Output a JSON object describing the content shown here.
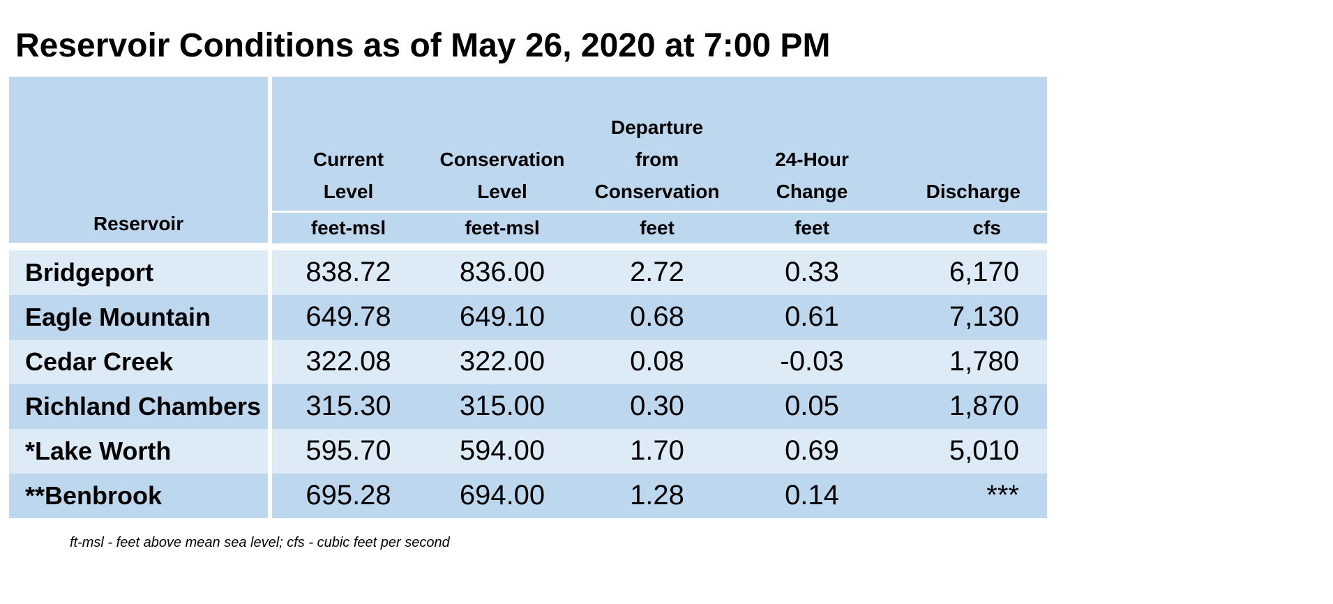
{
  "title": "Reservoir Conditions as of May 26, 2020 at 7:00 PM",
  "columns": [
    {
      "header": "Reservoir",
      "unit": ""
    },
    {
      "header": "Current Level",
      "unit": "feet-msl"
    },
    {
      "header": "Conservation Level",
      "unit": "feet-msl"
    },
    {
      "header": "Departure from Conservation",
      "unit": "feet"
    },
    {
      "header": "24-Hour Change",
      "unit": "feet"
    },
    {
      "header": "Discharge",
      "unit": "cfs"
    }
  ],
  "rows": [
    {
      "reservoir": "Bridgeport",
      "current": "838.72",
      "conservation": "836.00",
      "departure": "2.72",
      "change": "0.33",
      "discharge": "6,170"
    },
    {
      "reservoir": "Eagle Mountain",
      "current": "649.78",
      "conservation": "649.10",
      "departure": "0.68",
      "change": "0.61",
      "discharge": "7,130"
    },
    {
      "reservoir": "Cedar Creek",
      "current": "322.08",
      "conservation": "322.00",
      "departure": "0.08",
      "change": "-0.03",
      "discharge": "1,780"
    },
    {
      "reservoir": "Richland Chambers",
      "current": "315.30",
      "conservation": "315.00",
      "departure": "0.30",
      "change": "0.05",
      "discharge": "1,870"
    },
    {
      "reservoir": "*Lake Worth",
      "current": "595.70",
      "conservation": "594.00",
      "departure": "1.70",
      "change": "0.69",
      "discharge": "5,010"
    },
    {
      "reservoir": "**Benbrook",
      "current": "695.28",
      "conservation": "694.00",
      "departure": "1.28",
      "change": "0.14",
      "discharge": "***"
    }
  ],
  "footnote": "ft-msl - feet above mean sea level; cfs - cubic feet per second",
  "colors": {
    "header_bg": "#bdd7ee",
    "row_light": "#ddebf7",
    "row_dark": "#bdd7ee"
  }
}
